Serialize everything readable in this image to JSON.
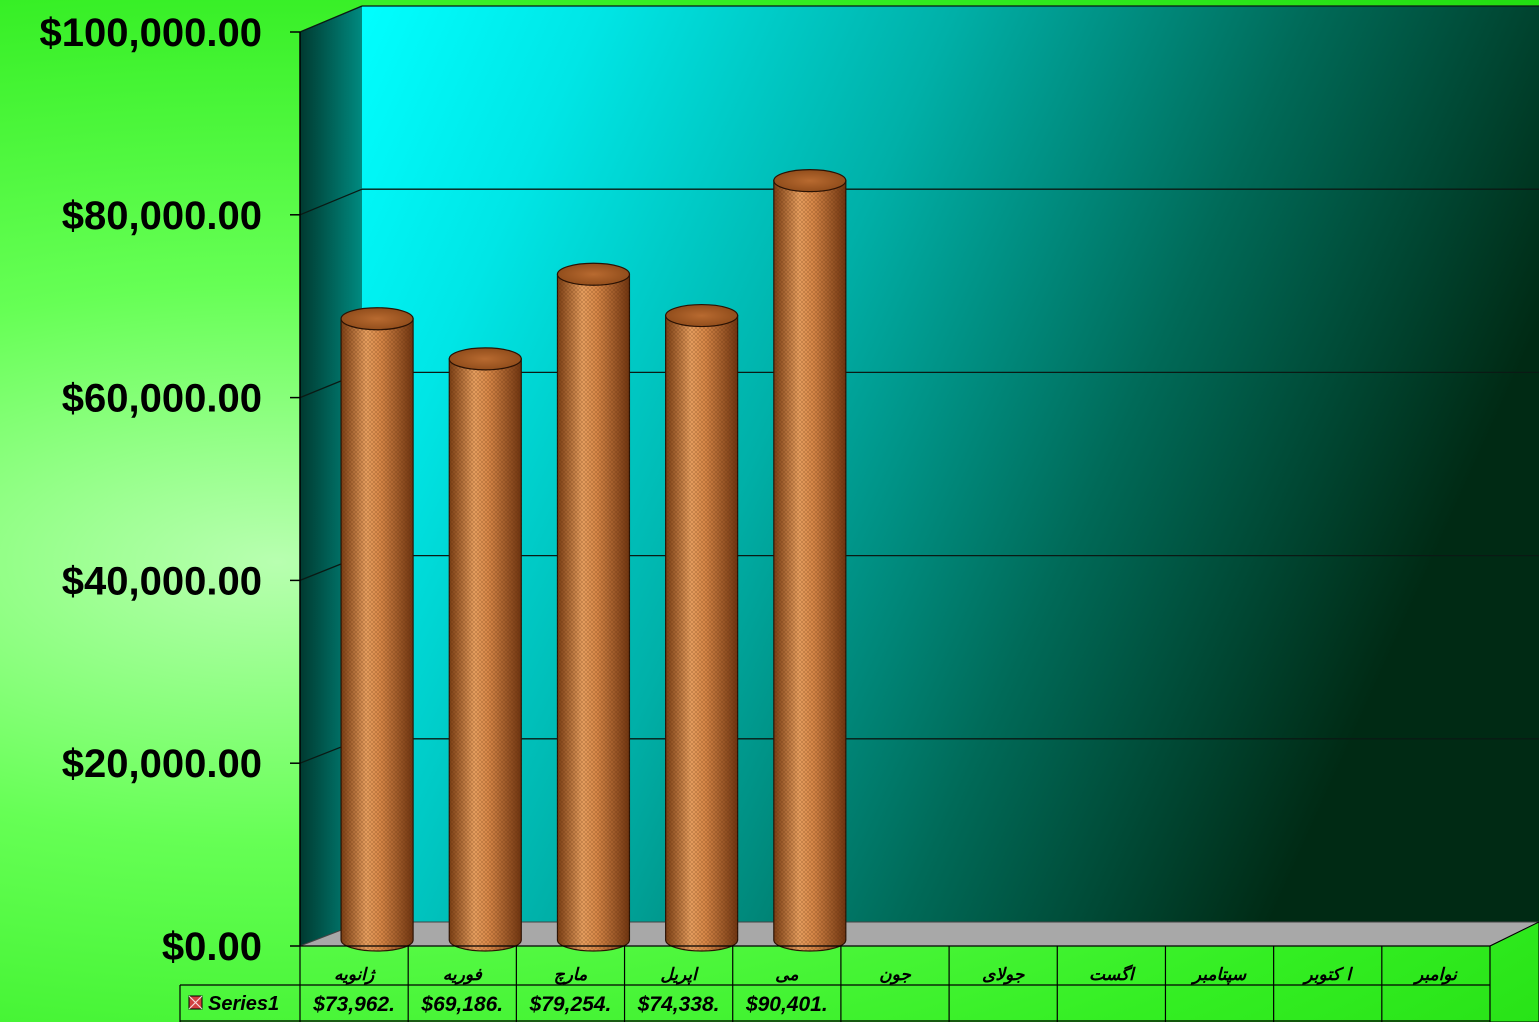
{
  "chart_data": {
    "type": "bar",
    "style": "3d-cylinder",
    "categories": [
      "ژانویه",
      "فوریه",
      "مارچ",
      "اپریل",
      "می",
      "جون",
      "جولای",
      "اگست",
      "سپتامبر",
      "ا کتوبر",
      "نوامبر"
    ],
    "series": [
      {
        "name": "Series1",
        "values": [
          73962,
          69186,
          79254,
          74338,
          90401,
          null,
          null,
          null,
          null,
          null,
          null
        ],
        "value_labels": [
          "$73,962.",
          "$69,186.",
          "$79,254.",
          "$74,338.",
          "$90,401.",
          "",
          "",
          "",
          "",
          "",
          ""
        ]
      }
    ],
    "y_tick_labels": [
      "$0.00",
      "$20,000.00",
      "$40,000.00",
      "$60,000.00",
      "$80,000.00",
      "$100,000.00"
    ],
    "ylim": [
      0,
      100000
    ],
    "y_step": 20000,
    "grid": true,
    "legend": "bottom-left (data table)",
    "colors": {
      "bar": "#c87838",
      "back_wall_light": "#00ffff",
      "back_wall_dark": "#003318",
      "floor": "#a8a8a8",
      "page_background": "#44ee33",
      "legend_key": "#d04040"
    }
  }
}
